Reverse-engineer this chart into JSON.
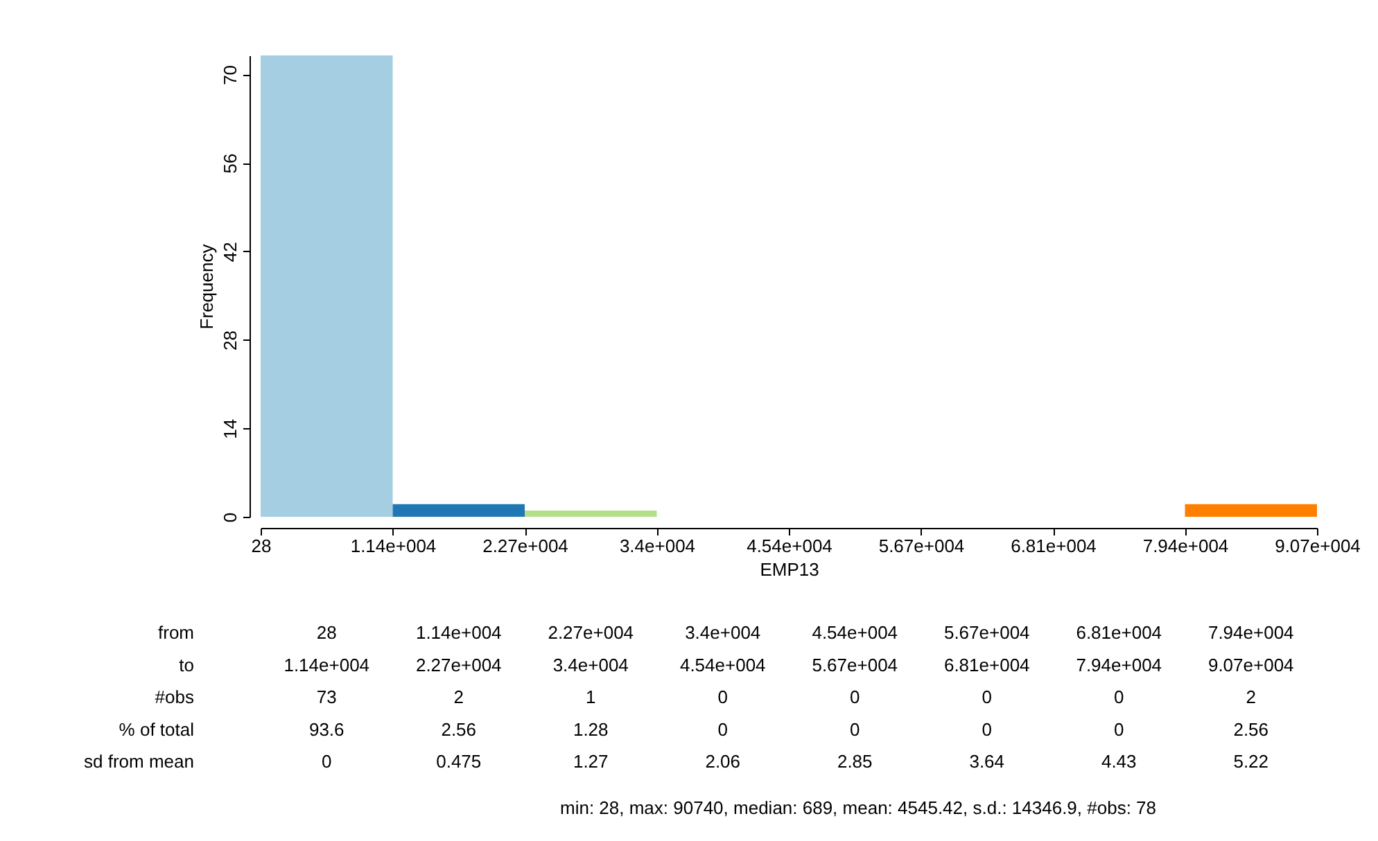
{
  "chart_data": {
    "type": "histogram",
    "xlabel": "EMP13",
    "ylabel": "Frequency",
    "bins": [
      28,
      11367,
      22706,
      34045,
      45384,
      56723,
      68062,
      79401,
      90740
    ],
    "values": [
      73,
      2,
      1,
      0,
      0,
      0,
      0,
      2
    ],
    "colors": [
      "#a6cee3",
      "#1f78b4",
      "#b2df8a",
      "#33a02c",
      "#fb9a99",
      "#e31a1c",
      "#fdbf6f",
      "#ff7f00"
    ],
    "xlim": [
      28,
      90740
    ],
    "ylim": [
      0,
      73
    ],
    "xticks": [
      28,
      {
        "value": 11367,
        "label": "1.14e+004"
      },
      {
        "value": 22706,
        "label": "2.27e+004"
      },
      {
        "value": 34045,
        "label": "3.4e+004"
      },
      {
        "value": 45384,
        "label": "4.54e+004"
      },
      {
        "value": 56723,
        "label": "5.67e+004"
      },
      {
        "value": 68062,
        "label": "6.81e+004"
      },
      {
        "value": 79401,
        "label": "7.94e+004"
      },
      {
        "value": 90740,
        "label": "9.07e+004"
      }
    ],
    "yticks": [
      0,
      14,
      28,
      42,
      56,
      70
    ],
    "grid": false,
    "legend": false,
    "annotations": [
      "from",
      "28",
      "1.14e+004",
      "2.27e+004",
      "3.4e+004",
      "4.54e+004",
      "5.67e+004",
      "6.81e+004",
      "7.94e+004",
      "to",
      "1.14e+004",
      "2.27e+004",
      "3.4e+004",
      "4.54e+004",
      "5.67e+004",
      "6.81e+004",
      "7.94e+004",
      "9.07e+004",
      "#obs",
      "73",
      "2",
      "1",
      "0",
      "0",
      "0",
      "0",
      "2",
      "% of total",
      "93.6",
      "2.56",
      "1.28",
      "0",
      "0",
      "0",
      "0",
      "2.56",
      "sd from mean",
      "0",
      "0.475",
      "1.27",
      "2.06",
      "2.85",
      "3.64",
      "4.43",
      "5.22",
      "min: 28, max: 90740, median: 689, mean: 4545.42, s.d.: 14346.9, #obs: 78"
    ]
  }
}
